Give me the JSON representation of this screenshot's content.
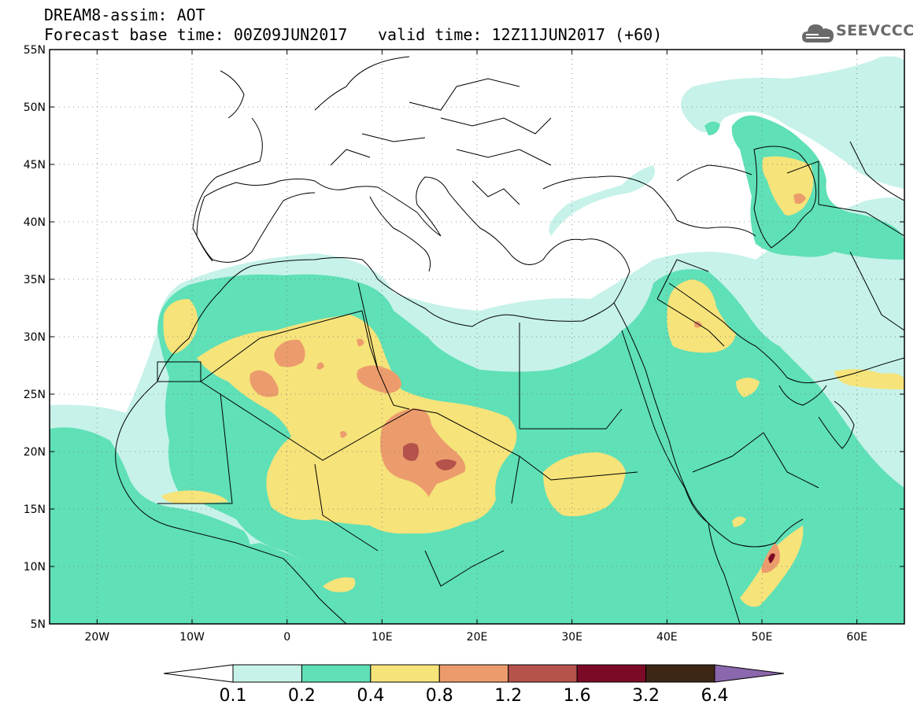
{
  "header": {
    "line1": "DREAM8-assim: AOT",
    "line2": "Forecast base time: 00Z09JUN2017",
    "valid": "valid time: 12Z11JUN2017 (+60)"
  },
  "logo": {
    "text": "SEEVCCC",
    "icon": "cloud-icon"
  },
  "map": {
    "lat_labels": [
      "55N",
      "50N",
      "45N",
      "40N",
      "35N",
      "30N",
      "25N",
      "20N",
      "15N",
      "10N",
      "5N"
    ],
    "lon_labels": [
      "20W",
      "10W",
      "0",
      "10E",
      "20E",
      "30E",
      "40E",
      "50E",
      "60E"
    ],
    "lat_range": [
      5,
      55
    ],
    "lon_range": [
      -25,
      65
    ]
  },
  "legend": {
    "labels": [
      "0.1",
      "0.2",
      "0.4",
      "0.8",
      "1.2",
      "1.6",
      "3.2",
      "6.4"
    ],
    "colors": [
      "#ffffff",
      "#c6f2e9",
      "#5fe0b7",
      "#f6e37a",
      "#ec9c6c",
      "#b5524b",
      "#7b0a26",
      "#3d2615",
      "#8b67ad"
    ]
  },
  "colors": {
    "c01": "#c6f2e9",
    "c02": "#5fe0b7",
    "c04": "#f6e37a",
    "c08": "#ec9c6c",
    "c12": "#b5524b",
    "c16": "#7b0a26"
  }
}
